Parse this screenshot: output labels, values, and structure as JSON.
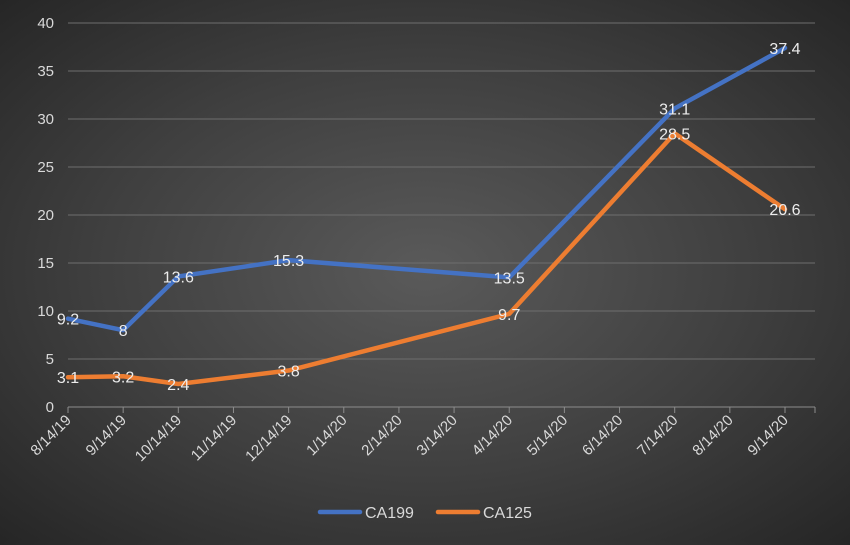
{
  "chart_data": {
    "type": "line",
    "title": "",
    "xlabel": "",
    "ylabel": "",
    "x": [
      "8/14/19",
      "9/14/19",
      "10/14/19",
      "11/14/19",
      "12/14/19",
      "1/14/20",
      "2/14/20",
      "3/14/20",
      "4/14/20",
      "5/14/20",
      "6/14/20",
      "7/14/20",
      "8/14/20",
      "9/14/20"
    ],
    "ylim": [
      0,
      40
    ],
    "yticks": [
      0,
      5,
      10,
      15,
      20,
      25,
      30,
      35,
      40
    ],
    "grid": true,
    "legend_position": "bottom",
    "series": [
      {
        "name": "CA199",
        "color": "#4472C4",
        "points": [
          {
            "x": "8/14/19",
            "y": 9.2,
            "label": "9.2"
          },
          {
            "x": "9/14/19",
            "y": 8,
            "label": "8"
          },
          {
            "x": "10/14/19",
            "y": 13.6,
            "label": "13.6"
          },
          {
            "x": "12/14/19",
            "y": 15.3,
            "label": "15.3"
          },
          {
            "x": "4/14/20",
            "y": 13.5,
            "label": "13.5"
          },
          {
            "x": "7/14/20",
            "y": 31.1,
            "label": "31.1"
          },
          {
            "x": "9/14/20",
            "y": 37.4,
            "label": "37.4"
          }
        ]
      },
      {
        "name": "CA125",
        "color": "#ED7D31",
        "points": [
          {
            "x": "8/14/19",
            "y": 3.1,
            "label": "3.1"
          },
          {
            "x": "9/14/19",
            "y": 3.2,
            "label": "3.2"
          },
          {
            "x": "10/14/19",
            "y": 2.4,
            "label": "2.4"
          },
          {
            "x": "12/14/19",
            "y": 3.8,
            "label": "3.8"
          },
          {
            "x": "4/14/20",
            "y": 9.7,
            "label": "9.7"
          },
          {
            "x": "7/14/20",
            "y": 28.5,
            "label": "28.5"
          },
          {
            "x": "9/14/20",
            "y": 20.6,
            "label": "20.6"
          }
        ]
      }
    ]
  }
}
